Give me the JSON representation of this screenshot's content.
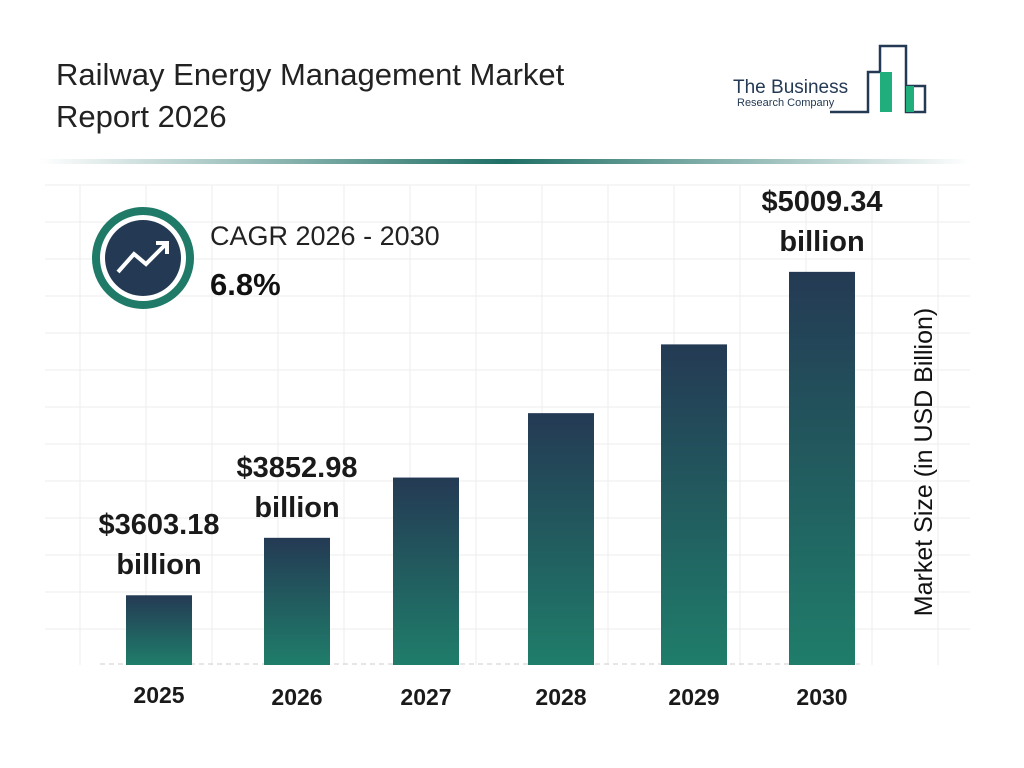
{
  "chart_data": {
    "type": "bar",
    "title": "Railway Energy Management Market Report 2026",
    "logo": {
      "line1": "The Business",
      "line2": "Research Company"
    },
    "cagr_label": "CAGR 2026 - 2030",
    "cagr_value": "6.8%",
    "y_label": "Market Size (in USD Billion)",
    "categories": [
      "2025",
      "2026",
      "2027",
      "2028",
      "2029",
      "2030"
    ],
    "values": [
      3603.18,
      3852.98,
      4115,
      4395,
      4694,
      5009.34
    ],
    "value_labels": [
      "$3603.18 billion",
      "$3852.98 billion",
      null,
      null,
      null,
      "$5009.34 billion"
    ],
    "gradient": [
      "#243a54",
      "#1f7d6a"
    ],
    "ylim": [
      3300,
      5300
    ]
  }
}
